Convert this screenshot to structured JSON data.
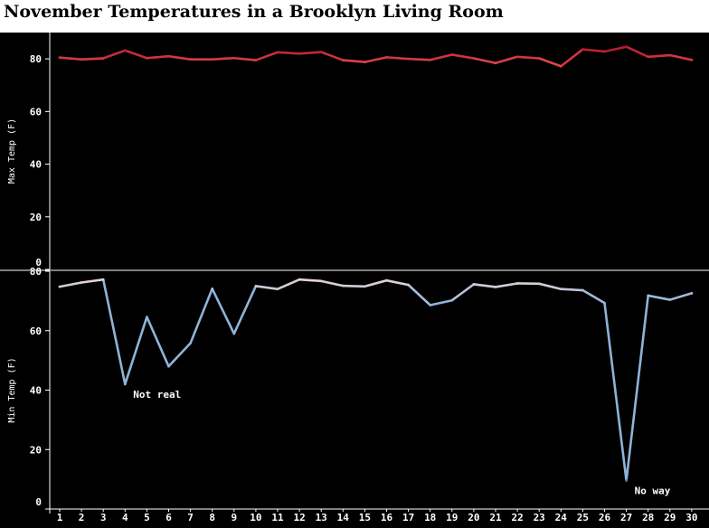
{
  "title": "November Temperatures in a Brooklyn Living Room",
  "colors": {
    "background": "#000000",
    "axis": "#ffffff",
    "max_line_low": "#e34a4f",
    "max_line_high": "#b0102a",
    "min_line_high": "#e8d3d6",
    "min_line_mid": "#8fb3d9",
    "min_line_low": "#3a5f8f"
  },
  "chart_data": [
    {
      "type": "line",
      "title": "November Temperatures in a Brooklyn Living Room",
      "ylabel": "Max Temp (F)",
      "xlabel": "",
      "ylim": [
        0,
        90
      ],
      "yticks": [
        0,
        20,
        40,
        60,
        80
      ],
      "grid": false,
      "x": [
        1,
        2,
        3,
        4,
        5,
        6,
        7,
        8,
        9,
        10,
        11,
        12,
        13,
        14,
        15,
        16,
        17,
        18,
        19,
        20,
        21,
        22,
        23,
        24,
        25,
        26,
        27,
        28,
        29,
        30
      ],
      "series": [
        {
          "values": [
            80.5,
            79.8,
            80.2,
            83.2,
            80.3,
            81,
            79.8,
            79.8,
            80.3,
            79.5,
            82.5,
            82,
            82.6,
            79.5,
            78.8,
            80.6,
            80,
            79.6,
            81.6,
            80.2,
            78.4,
            80.8,
            80.2,
            77.2,
            83.6,
            82.8,
            84.6,
            80.8,
            81.4,
            79.6
          ]
        }
      ]
    },
    {
      "type": "line",
      "ylabel": "Min Temp (F)",
      "xlabel": "",
      "ylim": [
        0,
        80
      ],
      "yticks": [
        0,
        20,
        40,
        60,
        80
      ],
      "grid": false,
      "x": [
        1,
        2,
        3,
        4,
        5,
        6,
        7,
        8,
        9,
        10,
        11,
        12,
        13,
        14,
        15,
        16,
        17,
        18,
        19,
        20,
        21,
        22,
        23,
        24,
        25,
        26,
        27,
        28,
        29,
        30
      ],
      "series": [
        {
          "values": [
            74.8,
            76.2,
            77.2,
            42,
            64.6,
            48,
            55.8,
            74.1,
            59,
            75,
            74,
            77.2,
            76.7,
            75.1,
            74.9,
            76.9,
            75.4,
            68.6,
            70.2,
            75.6,
            74.7,
            75.9,
            75.8,
            74,
            73.6,
            69.3,
            9.6,
            71.8,
            70.4,
            72.6
          ]
        }
      ],
      "annotations": [
        {
          "text": "Not real",
          "x": 4,
          "y": 42
        },
        {
          "text": "No way",
          "x": 27,
          "y": 9.6
        }
      ]
    }
  ]
}
